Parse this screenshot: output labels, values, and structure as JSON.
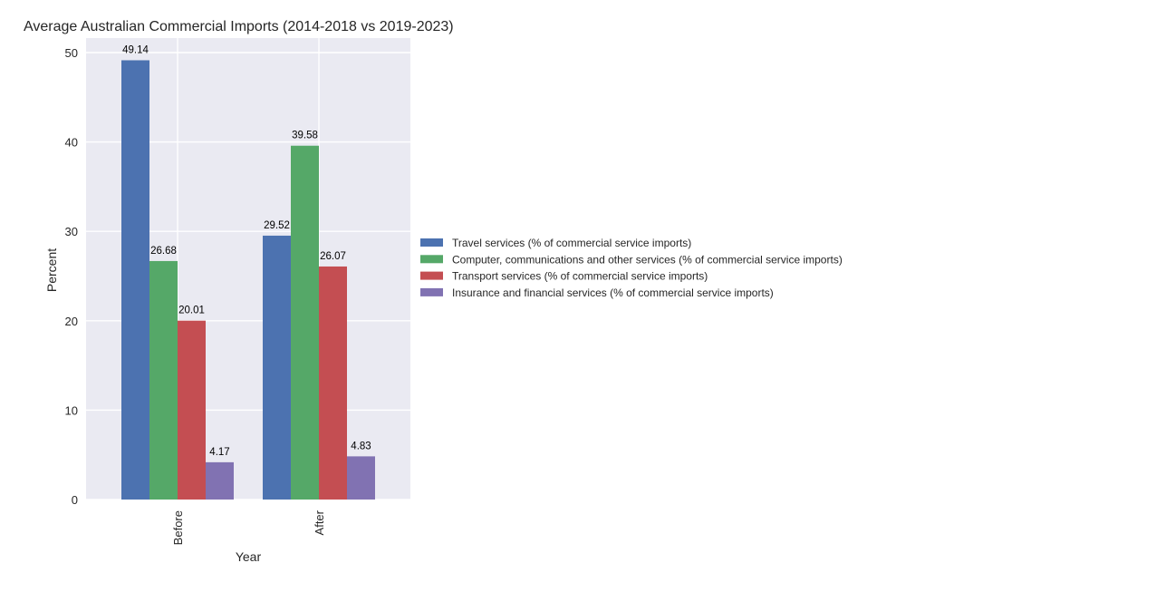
{
  "chart_data": {
    "type": "bar",
    "title": "Average Australian Commercial Imports (2014-2018 vs 2019-2023)",
    "xlabel": "Year",
    "ylabel": "Percent",
    "categories": [
      "Before",
      "After"
    ],
    "ylim": [
      0,
      52
    ],
    "yticks": [
      0,
      10,
      20,
      30,
      40,
      50
    ],
    "grid": true,
    "legend_position": "right",
    "series": [
      {
        "name": "Travel services (% of commercial service imports)",
        "values": [
          49.14,
          29.52
        ],
        "color": "#4c72b0"
      },
      {
        "name": "Computer, communications and other services (% of commercial service imports)",
        "values": [
          26.68,
          39.58
        ],
        "color": "#55a868"
      },
      {
        "name": "Transport services (% of commercial service imports)",
        "values": [
          20.01,
          26.07
        ],
        "color": "#c44e52"
      },
      {
        "name": "Insurance and financial services (% of commercial service imports)",
        "values": [
          4.17,
          4.83
        ],
        "color": "#8172b2"
      }
    ]
  }
}
